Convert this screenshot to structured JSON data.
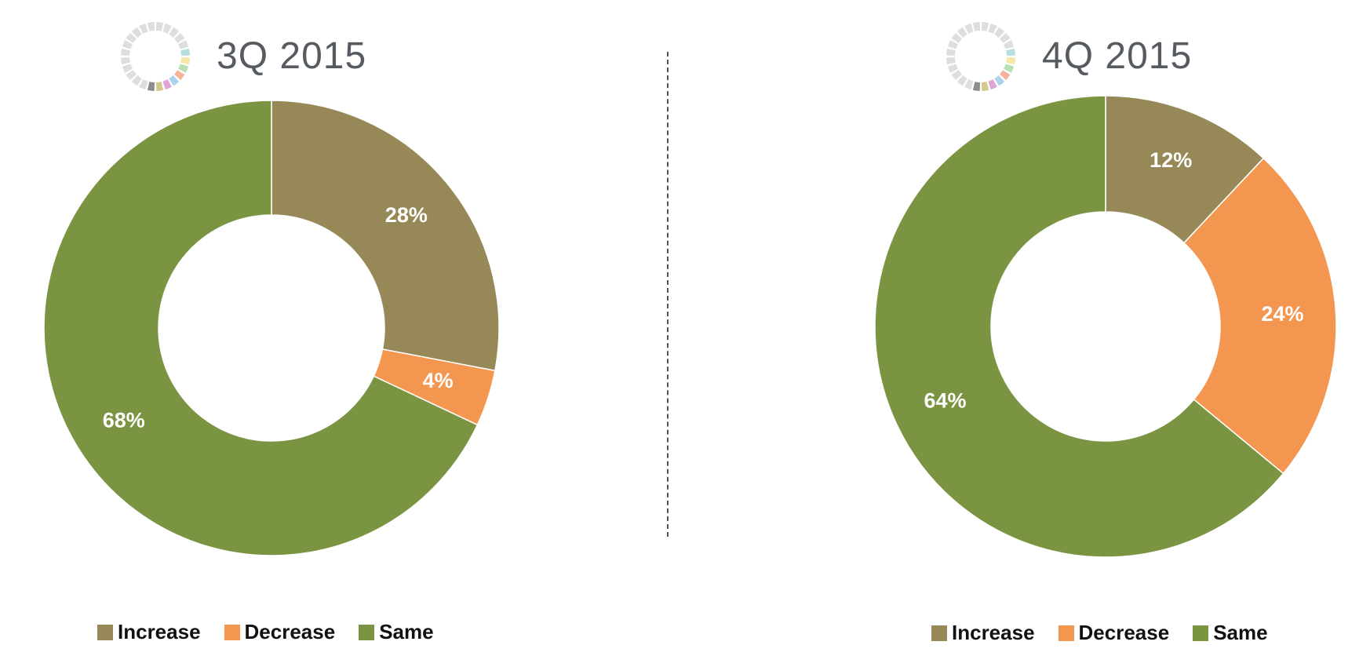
{
  "colors": {
    "increase": "#968957",
    "decrease": "#f39650",
    "same": "#7a9442"
  },
  "chart_data": [
    {
      "type": "pie",
      "title": "3Q 2015",
      "categories": [
        "Increase",
        "Decrease",
        "Same"
      ],
      "values": [
        28,
        4,
        68
      ],
      "value_labels": [
        "28%",
        "4%",
        "68%"
      ],
      "legend": {
        "position": "bottom",
        "entries": [
          "Increase",
          "Decrease",
          "Same"
        ]
      }
    },
    {
      "type": "pie",
      "title": "4Q 2015",
      "categories": [
        "Increase",
        "Decrease",
        "Same"
      ],
      "values": [
        12,
        24,
        64
      ],
      "value_labels": [
        "12%",
        "24%",
        "64%"
      ],
      "legend": {
        "position": "bottom",
        "entries": [
          "Increase",
          "Decrease",
          "Same"
        ]
      }
    }
  ]
}
